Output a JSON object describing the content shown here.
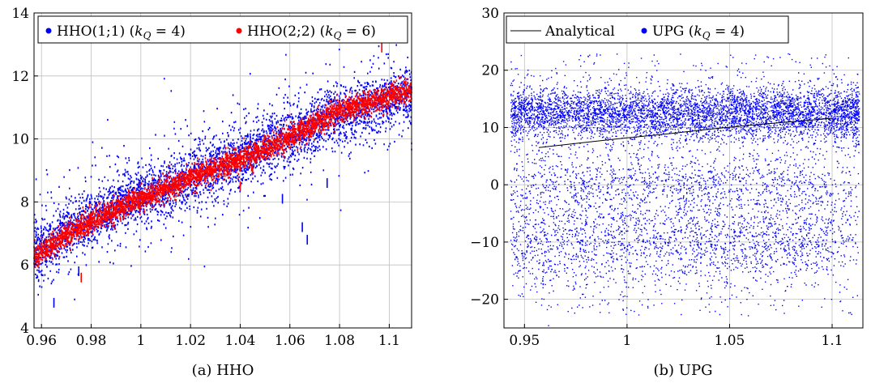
{
  "chart_data": [
    {
      "type": "scatter",
      "caption": "(a) HHO",
      "xlim": [
        0.957,
        1.109
      ],
      "ylim": [
        4,
        14
      ],
      "x_ticks": [
        0.96,
        0.98,
        1,
        1.02,
        1.04,
        1.06,
        1.08,
        1.1
      ],
      "x_tick_labels": [
        "0.96",
        "0.98",
        "1",
        "1.02",
        "1.04",
        "1.06",
        "1.08",
        "1.1"
      ],
      "y_ticks": [
        4,
        6,
        8,
        10,
        12,
        14
      ],
      "y_tick_labels": [
        "4",
        "6",
        "8",
        "10",
        "12",
        "14"
      ],
      "grid": true,
      "legend_position": "top",
      "series": [
        {
          "name": "HHO(1;1) (kQ = 4)",
          "color": "#0000ff",
          "trend_x": [
            0.957,
            0.97,
            0.99,
            1.02,
            1.05,
            1.08,
            1.109
          ],
          "trend_y": [
            6.4,
            7.1,
            7.9,
            8.8,
            9.8,
            10.8,
            11.5
          ],
          "spread": 0.45,
          "point_count": 4200,
          "outliers": [
            [
              1.065,
              7.2
            ],
            [
              1.067,
              6.8
            ],
            [
              1.057,
              8.1
            ],
            [
              0.975,
              5.8
            ],
            [
              0.965,
              4.8
            ],
            [
              1.075,
              8.6
            ]
          ]
        },
        {
          "name": "HHO(2;2) (kQ = 6)",
          "color": "#ff0000",
          "trend_x": [
            0.957,
            0.97,
            0.99,
            1.02,
            1.05,
            1.08,
            1.109
          ],
          "trend_y": [
            6.3,
            7.0,
            7.8,
            8.8,
            9.7,
            10.9,
            11.6
          ],
          "spread": 0.18,
          "point_count": 3600,
          "outliers": [
            [
              1.097,
              12.9
            ],
            [
              1.045,
              9.0
            ],
            [
              1.04,
              8.5
            ],
            [
              0.976,
              5.6
            ]
          ]
        }
      ],
      "legend_entries": [
        {
          "label": "HHO(1;1) (",
          "math": "k",
          "sub": "Q",
          "rest": " = 4)",
          "color": "#0000ff"
        },
        {
          "label": "HHO(2;2) (",
          "math": "k",
          "sub": "Q",
          "rest": " = 6)",
          "color": "#ff0000"
        }
      ]
    },
    {
      "type": "scatter",
      "caption": "(b) UPG",
      "xlim": [
        0.94,
        1.115
      ],
      "ylim": [
        -25,
        30
      ],
      "x_ticks": [
        0.95,
        1,
        1.05,
        1.1
      ],
      "x_tick_labels": [
        "0.95",
        "1",
        "1.05",
        "1.1"
      ],
      "y_ticks": [
        -20,
        -10,
        0,
        10,
        20,
        30
      ],
      "y_tick_labels": [
        "−20",
        "−10",
        "0",
        "10",
        "20",
        "30"
      ],
      "grid": true,
      "legend_position": "top-left",
      "series": [
        {
          "name": "Analytical",
          "kind": "line",
          "color": "#000000",
          "x": [
            0.957,
            0.98,
            1.0,
            1.02,
            1.04,
            1.06,
            1.08,
            1.1
          ],
          "y": [
            6.5,
            7.4,
            8.2,
            8.9,
            9.7,
            10.4,
            11.0,
            11.6
          ]
        },
        {
          "name": "UPG (kQ = 4)",
          "kind": "scatter",
          "color": "#0000ff",
          "band_center": 12.5,
          "band_spread": 2.2,
          "y_range": [
            -23,
            23
          ],
          "point_count": 9000
        }
      ],
      "legend_entries": [
        {
          "label": "Analytical",
          "color": "#000000",
          "kind": "line"
        },
        {
          "label": "UPG (",
          "math": "k",
          "sub": "Q",
          "rest": " = 4)",
          "color": "#0000ff",
          "kind": "dot"
        }
      ]
    }
  ]
}
